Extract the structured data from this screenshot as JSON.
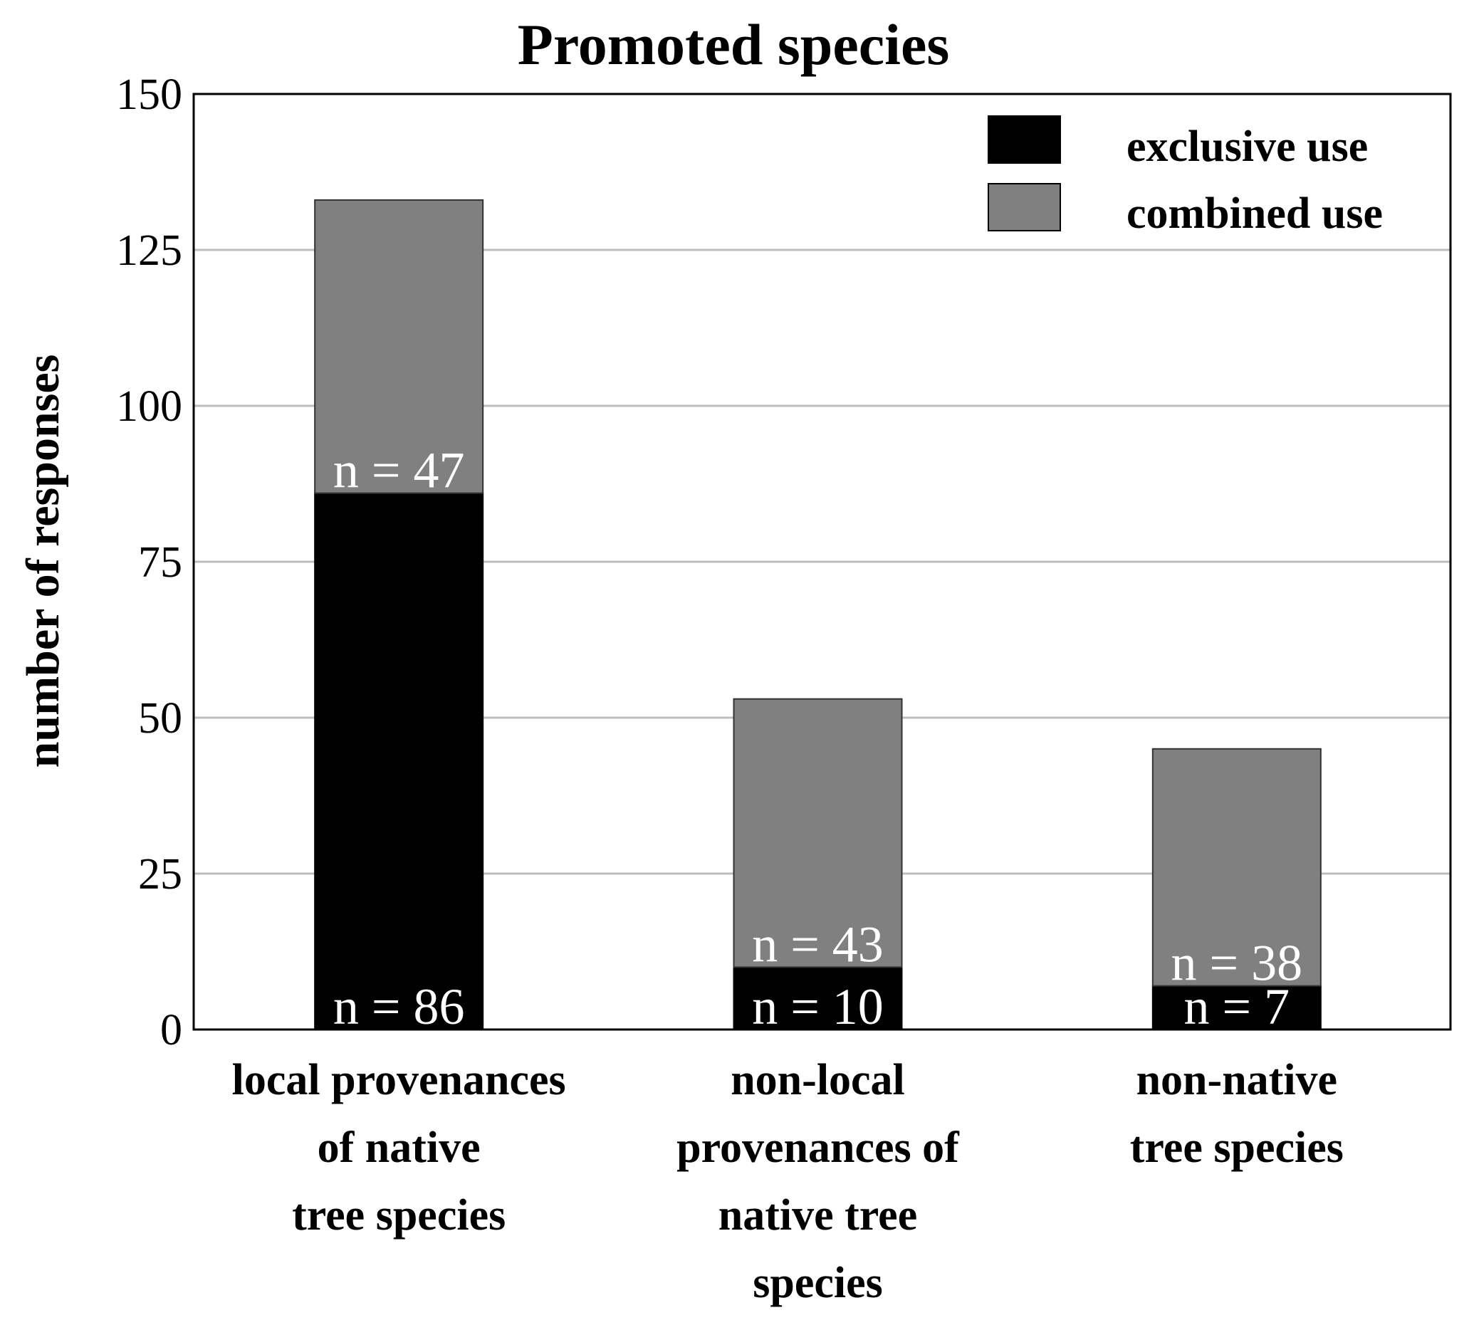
{
  "chart_data": {
    "type": "bar",
    "stacked": true,
    "title": "Promoted species",
    "xlabel": "",
    "ylabel": "number of responses",
    "ylim": [
      0,
      150
    ],
    "yticks": [
      "0",
      "25",
      "50",
      "75",
      "100",
      "125",
      "150"
    ],
    "grid": true,
    "legend_position": "top-right",
    "categories": [
      [
        "local provenances",
        "of native",
        "tree species"
      ],
      [
        "non-local",
        "provenances of",
        "native tree",
        "species"
      ],
      [
        "non-native",
        "tree species"
      ]
    ],
    "series": [
      {
        "name": "exclusive use",
        "color": "#000000",
        "values": [
          86,
          10,
          7
        ],
        "labels": [
          "n = 86",
          "n = 10",
          "n = 7"
        ]
      },
      {
        "name": "combined use",
        "color": "#808080",
        "values": [
          47,
          43,
          38
        ],
        "labels": [
          "n = 47",
          "n = 43",
          "n = 38"
        ]
      }
    ]
  }
}
